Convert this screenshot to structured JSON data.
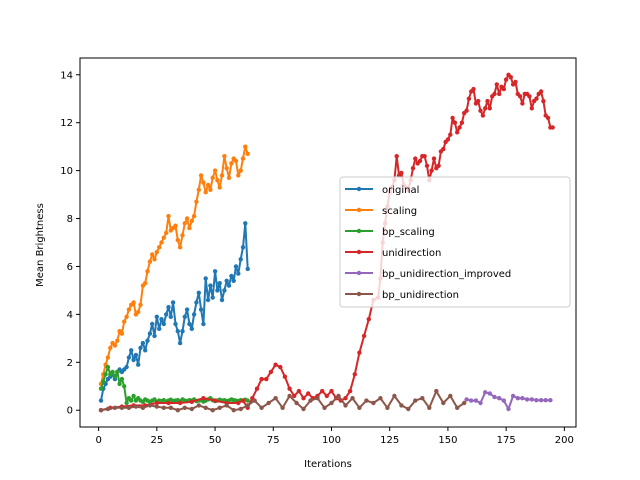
{
  "chart_data": {
    "type": "line",
    "title": "",
    "xlabel": "Iterations",
    "ylabel": "Mean Brightness",
    "xlim": [
      -8,
      205
    ],
    "ylim": [
      -0.7,
      14.7
    ],
    "xticks": [
      0,
      25,
      50,
      75,
      100,
      125,
      150,
      175,
      200
    ],
    "yticks": [
      0,
      2,
      4,
      6,
      8,
      10,
      12,
      14
    ],
    "grid": false,
    "legend_position": "center-right",
    "series": [
      {
        "name": "original",
        "color": "#1f77b4",
        "x": [
          1,
          2,
          3,
          4,
          5,
          6,
          7,
          8,
          9,
          10,
          11,
          12,
          13,
          14,
          15,
          16,
          17,
          18,
          19,
          20,
          21,
          22,
          23,
          24,
          25,
          26,
          27,
          28,
          29,
          30,
          31,
          32,
          33,
          34,
          35,
          36,
          37,
          38,
          39,
          40,
          41,
          42,
          43,
          44,
          45,
          46,
          47,
          48,
          49,
          50,
          51,
          52,
          53,
          54,
          55,
          56,
          57,
          58,
          59,
          60,
          61,
          62,
          63,
          64
        ],
        "y": [
          0.4,
          0.9,
          1.1,
          1.3,
          1.4,
          1.5,
          1.3,
          1.6,
          1.7,
          1.6,
          1.7,
          1.8,
          2.2,
          2.5,
          2.1,
          2.3,
          1.9,
          2.6,
          2.8,
          2.5,
          2.9,
          3.2,
          3.6,
          3.1,
          3.9,
          3.4,
          3.8,
          3.6,
          4.0,
          4.3,
          3.9,
          4.5,
          3.6,
          3.3,
          2.8,
          3.3,
          3.9,
          4.2,
          3.6,
          3.4,
          4.0,
          4.5,
          4.9,
          4.2,
          3.6,
          5.5,
          4.6,
          5.2,
          4.7,
          5.8,
          5.0,
          5.3,
          4.6,
          5.0,
          5.4,
          5.2,
          5.6,
          5.4,
          6.0,
          5.7,
          6.3,
          6.8,
          7.8,
          5.9
        ]
      },
      {
        "name": "scaling",
        "color": "#ff7f0e",
        "x": [
          1,
          2,
          3,
          4,
          5,
          6,
          7,
          8,
          9,
          10,
          11,
          12,
          13,
          14,
          15,
          16,
          17,
          18,
          19,
          20,
          21,
          22,
          23,
          24,
          25,
          26,
          27,
          28,
          29,
          30,
          31,
          32,
          33,
          34,
          35,
          36,
          37,
          38,
          39,
          40,
          41,
          42,
          43,
          44,
          45,
          46,
          47,
          48,
          49,
          50,
          51,
          52,
          53,
          54,
          55,
          56,
          57,
          58,
          59,
          60,
          61,
          62,
          63,
          64
        ],
        "y": [
          1.1,
          1.5,
          1.9,
          2.2,
          2.6,
          2.8,
          2.7,
          2.9,
          3.3,
          3.2,
          3.7,
          3.9,
          4.2,
          4.4,
          4.5,
          4.0,
          4.1,
          4.4,
          5.2,
          5.3,
          5.8,
          6.2,
          6.5,
          6.3,
          6.6,
          6.8,
          7.0,
          7.2,
          7.4,
          8.1,
          7.5,
          7.6,
          7.7,
          7.1,
          6.8,
          7.3,
          7.8,
          8.0,
          7.6,
          7.9,
          8.1,
          8.7,
          9.2,
          9.8,
          9.5,
          9.1,
          9.4,
          9.2,
          9.7,
          10.0,
          9.6,
          9.3,
          9.8,
          10.6,
          10.1,
          9.7,
          10.3,
          10.5,
          10.4,
          9.8,
          10.0,
          10.5,
          11.0,
          10.7
        ]
      },
      {
        "name": "bp_scaling",
        "color": "#2ca02c",
        "x": [
          1,
          2,
          3,
          4,
          5,
          6,
          7,
          8,
          9,
          10,
          11,
          12,
          13,
          14,
          15,
          16,
          17,
          18,
          19,
          20,
          21,
          22,
          23,
          24,
          25,
          26,
          27,
          28,
          29,
          30,
          31,
          32,
          33,
          34,
          35,
          36,
          37,
          38,
          39,
          40,
          41,
          42,
          43,
          44,
          45,
          46,
          47,
          48,
          49,
          50,
          51,
          52,
          53,
          54,
          55,
          56,
          57,
          58,
          59,
          60,
          61,
          62,
          63,
          64
        ],
        "y": [
          0.9,
          1.2,
          1.5,
          1.8,
          1.5,
          1.6,
          1.4,
          1.6,
          1.1,
          1.3,
          1.0,
          0.3,
          0.5,
          0.4,
          0.6,
          0.4,
          0.5,
          0.4,
          0.35,
          0.45,
          0.4,
          0.35,
          0.4,
          0.45,
          0.35,
          0.4,
          0.38,
          0.42,
          0.36,
          0.4,
          0.44,
          0.38,
          0.4,
          0.42,
          0.36,
          0.45,
          0.4,
          0.38,
          0.42,
          0.4,
          0.45,
          0.38,
          0.4,
          0.42,
          0.36,
          0.4,
          0.45,
          0.5,
          0.42,
          0.38,
          0.4,
          0.44,
          0.4,
          0.42,
          0.38,
          0.4,
          0.45,
          0.42,
          0.4,
          0.38,
          0.42,
          0.4,
          0.44,
          0.4
        ]
      },
      {
        "name": "unidirection",
        "color": "#d62728",
        "x": [
          1,
          5,
          10,
          15,
          20,
          25,
          30,
          35,
          40,
          45,
          50,
          55,
          60,
          62,
          64,
          66,
          68,
          70,
          72,
          74,
          76,
          78,
          80,
          82,
          84,
          86,
          88,
          90,
          92,
          94,
          96,
          98,
          100,
          102,
          104,
          106,
          108,
          110,
          112,
          114,
          116,
          118,
          120,
          121,
          122,
          123,
          124,
          125,
          126,
          127,
          128,
          129,
          130,
          131,
          132,
          133,
          134,
          135,
          136,
          137,
          138,
          139,
          140,
          141,
          142,
          143,
          144,
          145,
          146,
          147,
          148,
          149,
          150,
          151,
          152,
          153,
          154,
          155,
          156,
          157,
          158,
          159,
          160,
          161,
          162,
          163,
          164,
          165,
          166,
          167,
          168,
          169,
          170,
          171,
          172,
          173,
          174,
          175,
          176,
          177,
          178,
          179,
          180,
          181,
          182,
          183,
          184,
          185,
          186,
          187,
          188,
          189,
          190,
          191,
          192,
          193,
          194,
          195
        ],
        "y": [
          0.0,
          0.1,
          0.15,
          0.2,
          0.2,
          0.3,
          0.3,
          0.3,
          0.35,
          0.5,
          0.4,
          0.3,
          0.3,
          0.4,
          0.1,
          0.5,
          0.9,
          1.3,
          1.3,
          1.6,
          1.9,
          1.8,
          1.4,
          0.9,
          0.6,
          0.8,
          0.5,
          0.7,
          0.5,
          0.6,
          0.8,
          0.6,
          0.8,
          0.5,
          0.4,
          0.5,
          0.8,
          1.5,
          2.4,
          3.1,
          3.8,
          4.6,
          4.7,
          5.5,
          7.0,
          7.8,
          8.5,
          9.1,
          9.3,
          9.6,
          10.6,
          9.8,
          9.9,
          9.4,
          9.3,
          9.2,
          9.6,
          10.1,
          10.5,
          10.3,
          10.4,
          10.6,
          10.6,
          10.2,
          9.6,
          10.0,
          10.5,
          10.1,
          10.2,
          10.8,
          10.9,
          11.2,
          11.3,
          11.5,
          12.2,
          12.0,
          11.6,
          11.8,
          12.0,
          12.4,
          12.5,
          13.0,
          13.3,
          13.4,
          12.8,
          12.9,
          12.5,
          12.3,
          12.6,
          12.9,
          12.6,
          13.1,
          13.2,
          13.6,
          13.2,
          13.5,
          13.4,
          13.8,
          14.0,
          13.9,
          13.6,
          13.7,
          13.2,
          13.1,
          12.8,
          13.2,
          13.2,
          13.1,
          12.6,
          12.9,
          13.0,
          13.2,
          13.3,
          12.9,
          12.3,
          12.2,
          11.8,
          11.8
        ]
      },
      {
        "name": "bp_unidirection_improved",
        "color": "#9467bd",
        "x": [
          158,
          160,
          162,
          164,
          166,
          168,
          170,
          172,
          174,
          176,
          178,
          180,
          182,
          184,
          186,
          188,
          190,
          192,
          194
        ],
        "y": [
          0.45,
          0.4,
          0.4,
          0.3,
          0.75,
          0.7,
          0.55,
          0.5,
          0.4,
          0.05,
          0.6,
          0.5,
          0.5,
          0.45,
          0.45,
          0.42,
          0.42,
          0.42,
          0.42
        ]
      },
      {
        "name": "bp_unidirection",
        "color": "#8c564b",
        "x": [
          1,
          4,
          7,
          10,
          13,
          16,
          19,
          22,
          25,
          28,
          31,
          34,
          37,
          40,
          43,
          46,
          49,
          52,
          55,
          58,
          61,
          64,
          67,
          70,
          73,
          76,
          79,
          82,
          85,
          88,
          91,
          94,
          97,
          100,
          103,
          106,
          109,
          112,
          115,
          118,
          121,
          124,
          127,
          130,
          133,
          136,
          139,
          142,
          145,
          148,
          151,
          154,
          157
        ],
        "y": [
          0.0,
          0.05,
          0.1,
          0.1,
          0.1,
          0.15,
          0.1,
          0.2,
          0.15,
          0.1,
          0.1,
          0.0,
          0.1,
          0.05,
          0.2,
          0.1,
          0.0,
          0.1,
          0.2,
          0.0,
          0.05,
          0.2,
          0.4,
          0.1,
          0.3,
          0.5,
          0.1,
          0.6,
          0.3,
          0.05,
          0.4,
          0.5,
          0.1,
          0.3,
          0.6,
          0.2,
          0.5,
          0.1,
          0.4,
          0.3,
          0.5,
          0.1,
          0.6,
          0.2,
          0.05,
          0.4,
          0.5,
          0.1,
          0.8,
          0.3,
          0.6,
          0.1,
          0.3
        ]
      }
    ]
  }
}
